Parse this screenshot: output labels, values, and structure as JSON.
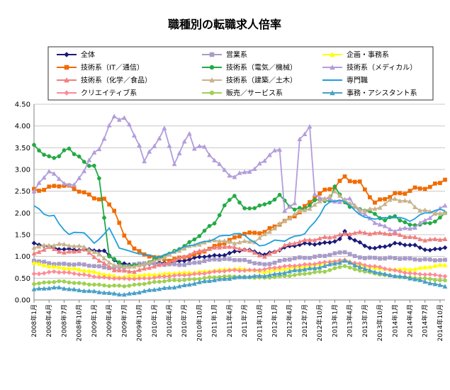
{
  "chart_data": {
    "type": "line",
    "title": "職種別の転職求人倍率",
    "ylim": [
      0,
      4.5
    ],
    "y_ticks": [
      "0.00",
      "0.50",
      "1.00",
      "1.50",
      "2.00",
      "2.50",
      "3.00",
      "3.50",
      "4.00",
      "4.50"
    ],
    "x_ticks": [
      "2008年1月",
      "2008年4月",
      "2008年7月",
      "2008年10月",
      "2009年1月",
      "2009年4月",
      "2009年7月",
      "2009年10月",
      "2010年1月",
      "2010年4月",
      "2010年7月",
      "2010年10月",
      "2011年1月",
      "2011年4月",
      "2011年7月",
      "2011年10月",
      "2012年1月",
      "2012年4月",
      "2012年7月",
      "2012年10月",
      "2013年1月",
      "2013年4月",
      "2013年7月",
      "2013年10月",
      "2014年1月",
      "2014年4月",
      "2014年7月",
      "2014年10月"
    ],
    "grid": true,
    "legend_position": "top",
    "series": [
      {
        "name": "全体",
        "color": "#1a1a7a",
        "marker": "diamond",
        "anchors": [
          [
            0,
            1.28
          ],
          [
            4,
            1.2
          ],
          [
            9,
            1.15
          ],
          [
            14,
            1.12
          ],
          [
            17,
            0.85
          ],
          [
            20,
            0.8
          ],
          [
            25,
            0.85
          ],
          [
            30,
            0.9
          ],
          [
            34,
            1.0
          ],
          [
            38,
            1.05
          ],
          [
            42,
            1.15
          ],
          [
            46,
            1.05
          ],
          [
            50,
            1.2
          ],
          [
            54,
            1.28
          ],
          [
            56,
            1.3
          ],
          [
            58,
            1.32
          ],
          [
            61,
            1.38
          ],
          [
            62,
            1.55
          ],
          [
            63,
            1.42
          ],
          [
            66,
            1.25
          ],
          [
            68,
            1.2
          ],
          [
            72,
            1.28
          ],
          [
            76,
            1.25
          ],
          [
            79,
            1.15
          ],
          [
            82,
            1.2
          ]
        ]
      },
      {
        "name": "営業系",
        "color": "#a89cc8",
        "marker": "square",
        "anchors": [
          [
            0,
            0.9
          ],
          [
            3,
            0.85
          ],
          [
            10,
            0.8
          ],
          [
            15,
            0.75
          ],
          [
            18,
            0.75
          ],
          [
            22,
            0.85
          ],
          [
            30,
            0.8
          ],
          [
            36,
            0.95
          ],
          [
            42,
            0.9
          ],
          [
            46,
            0.82
          ],
          [
            52,
            0.95
          ],
          [
            56,
            1.0
          ],
          [
            60,
            1.05
          ],
          [
            62,
            1.1
          ],
          [
            64,
            1.0
          ],
          [
            70,
            0.95
          ],
          [
            76,
            0.95
          ],
          [
            82,
            0.9
          ]
        ]
      },
      {
        "name": "企画・事務系",
        "color": "#ffff00",
        "marker": "triangle",
        "anchors": [
          [
            0,
            0.85
          ],
          [
            5,
            0.75
          ],
          [
            12,
            0.65
          ],
          [
            17,
            0.52
          ],
          [
            22,
            0.58
          ],
          [
            30,
            0.62
          ],
          [
            36,
            0.68
          ],
          [
            42,
            0.72
          ],
          [
            46,
            0.65
          ],
          [
            52,
            0.75
          ],
          [
            58,
            0.85
          ],
          [
            62,
            0.92
          ],
          [
            66,
            0.78
          ],
          [
            70,
            0.7
          ],
          [
            76,
            0.72
          ],
          [
            82,
            0.8
          ]
        ]
      },
      {
        "name": "技術系（IT／通信）",
        "color": "#f26b00",
        "marker": "square",
        "anchors": [
          [
            0,
            2.55
          ],
          [
            5,
            2.62
          ],
          [
            9,
            2.52
          ],
          [
            14,
            2.3
          ],
          [
            16,
            2.05
          ],
          [
            18,
            1.45
          ],
          [
            20,
            1.2
          ],
          [
            22,
            1.05
          ],
          [
            27,
            0.9
          ],
          [
            32,
            1.05
          ],
          [
            38,
            1.3
          ],
          [
            42,
            1.55
          ],
          [
            46,
            1.55
          ],
          [
            50,
            1.8
          ],
          [
            53,
            2.05
          ],
          [
            56,
            2.35
          ],
          [
            60,
            2.6
          ],
          [
            62,
            2.85
          ],
          [
            65,
            2.7
          ],
          [
            68,
            2.2
          ],
          [
            72,
            2.45
          ],
          [
            76,
            2.55
          ],
          [
            79,
            2.55
          ],
          [
            82,
            2.8
          ]
        ]
      },
      {
        "name": "技術系（電気／機械）",
        "color": "#22aa44",
        "marker": "circle",
        "anchors": [
          [
            0,
            3.65
          ],
          [
            2,
            3.3
          ],
          [
            5,
            3.25
          ],
          [
            7,
            3.5
          ],
          [
            10,
            3.2
          ],
          [
            12,
            3.1
          ],
          [
            13,
            2.75
          ],
          [
            15,
            1.0
          ],
          [
            18,
            0.78
          ],
          [
            22,
            0.82
          ],
          [
            27,
            1.05
          ],
          [
            32,
            1.4
          ],
          [
            36,
            1.75
          ],
          [
            38,
            2.15
          ],
          [
            40,
            2.45
          ],
          [
            42,
            2.1
          ],
          [
            46,
            2.15
          ],
          [
            49,
            2.4
          ],
          [
            52,
            2.1
          ],
          [
            54,
            2.1
          ],
          [
            56,
            2.25
          ],
          [
            59,
            2.3
          ],
          [
            60,
            2.6
          ],
          [
            63,
            2.15
          ],
          [
            66,
            2.05
          ],
          [
            70,
            1.85
          ],
          [
            72,
            1.95
          ],
          [
            75,
            1.7
          ],
          [
            79,
            1.75
          ],
          [
            82,
            2.0
          ]
        ]
      },
      {
        "name": "技術系（メディカル）",
        "color": "#b39ddb",
        "marker": "triangle",
        "anchors": [
          [
            0,
            2.5
          ],
          [
            3,
            2.95
          ],
          [
            5,
            2.75
          ],
          [
            8,
            2.65
          ],
          [
            11,
            3.2
          ],
          [
            13,
            3.45
          ],
          [
            16,
            4.2
          ],
          [
            18,
            4.25
          ],
          [
            21,
            3.6
          ],
          [
            22,
            3.15
          ],
          [
            26,
            3.9
          ],
          [
            28,
            3.2
          ],
          [
            31,
            3.85
          ],
          [
            32,
            3.5
          ],
          [
            34,
            3.45
          ],
          [
            37,
            3.1
          ],
          [
            40,
            2.85
          ],
          [
            42,
            2.95
          ],
          [
            44,
            2.95
          ],
          [
            47,
            3.35
          ],
          [
            49,
            3.5
          ],
          [
            50,
            2.1
          ],
          [
            52,
            2.2
          ],
          [
            53,
            3.7
          ],
          [
            55,
            3.9
          ],
          [
            56,
            2.4
          ],
          [
            60,
            2.3
          ],
          [
            63,
            2.3
          ],
          [
            65,
            2.0
          ],
          [
            68,
            1.8
          ],
          [
            72,
            1.6
          ],
          [
            76,
            1.65
          ],
          [
            82,
            2.2
          ]
        ]
      },
      {
        "name": "技術系（化学／食品）",
        "color": "#f08080",
        "marker": "triangle",
        "anchors": [
          [
            0,
            1.05
          ],
          [
            3,
            1.2
          ],
          [
            6,
            1.1
          ],
          [
            10,
            1.15
          ],
          [
            13,
            0.9
          ],
          [
            16,
            0.7
          ],
          [
            20,
            0.65
          ],
          [
            25,
            0.8
          ],
          [
            30,
            1.0
          ],
          [
            34,
            1.15
          ],
          [
            38,
            1.25
          ],
          [
            42,
            1.15
          ],
          [
            46,
            1.0
          ],
          [
            50,
            1.25
          ],
          [
            54,
            1.35
          ],
          [
            58,
            1.45
          ],
          [
            62,
            1.5
          ],
          [
            66,
            1.55
          ],
          [
            70,
            1.55
          ],
          [
            74,
            1.45
          ],
          [
            78,
            1.4
          ],
          [
            82,
            1.4
          ]
        ]
      },
      {
        "name": "技術系（建築／土木）",
        "color": "#c8b48c",
        "marker": "triangle",
        "anchors": [
          [
            0,
            1.2
          ],
          [
            5,
            1.3
          ],
          [
            10,
            1.2
          ],
          [
            13,
            1.05
          ],
          [
            16,
            0.8
          ],
          [
            20,
            0.75
          ],
          [
            24,
            0.9
          ],
          [
            28,
            1.1
          ],
          [
            32,
            1.25
          ],
          [
            36,
            1.4
          ],
          [
            40,
            1.3
          ],
          [
            44,
            1.35
          ],
          [
            47,
            1.6
          ],
          [
            50,
            1.8
          ],
          [
            52,
            1.95
          ],
          [
            56,
            2.2
          ],
          [
            58,
            2.35
          ],
          [
            60,
            2.45
          ],
          [
            63,
            2.2
          ],
          [
            65,
            2.1
          ],
          [
            68,
            2.1
          ],
          [
            72,
            2.3
          ],
          [
            75,
            2.25
          ],
          [
            77,
            2.1
          ],
          [
            80,
            2.0
          ],
          [
            82,
            1.95
          ]
        ]
      },
      {
        "name": "専門職",
        "color": "#1ea0dc",
        "marker": "none",
        "anchors": [
          [
            0,
            2.15
          ],
          [
            2,
            2.0
          ],
          [
            4,
            1.95
          ],
          [
            5,
            1.75
          ],
          [
            7,
            1.5
          ],
          [
            10,
            1.55
          ],
          [
            12,
            1.3
          ],
          [
            14,
            1.55
          ],
          [
            15,
            1.65
          ],
          [
            17,
            1.2
          ],
          [
            19,
            1.1
          ],
          [
            22,
            1.05
          ],
          [
            25,
            1.0
          ],
          [
            28,
            1.1
          ],
          [
            31,
            1.25
          ],
          [
            34,
            1.35
          ],
          [
            37,
            1.45
          ],
          [
            40,
            1.5
          ],
          [
            42,
            1.5
          ],
          [
            45,
            1.25
          ],
          [
            48,
            1.35
          ],
          [
            50,
            1.35
          ],
          [
            52,
            1.45
          ],
          [
            54,
            1.55
          ],
          [
            56,
            1.8
          ],
          [
            58,
            2.15
          ],
          [
            61,
            2.3
          ],
          [
            64,
            2.1
          ],
          [
            66,
            1.9
          ],
          [
            70,
            1.85
          ],
          [
            72,
            1.9
          ],
          [
            75,
            1.85
          ],
          [
            78,
            2.0
          ],
          [
            82,
            2.05
          ]
        ]
      },
      {
        "name": "クリエイティブ系",
        "color": "#ff8a9a",
        "marker": "diamond",
        "anchors": [
          [
            0,
            0.6
          ],
          [
            4,
            0.65
          ],
          [
            10,
            0.58
          ],
          [
            15,
            0.5
          ],
          [
            18,
            0.48
          ],
          [
            22,
            0.5
          ],
          [
            28,
            0.55
          ],
          [
            34,
            0.62
          ],
          [
            40,
            0.68
          ],
          [
            46,
            0.7
          ],
          [
            52,
            0.8
          ],
          [
            58,
            0.85
          ],
          [
            62,
            0.92
          ],
          [
            66,
            0.8
          ],
          [
            70,
            0.72
          ],
          [
            76,
            0.6
          ],
          [
            82,
            0.55
          ]
        ]
      },
      {
        "name": "販売／サービス系",
        "color": "#a0d050",
        "marker": "circle",
        "anchors": [
          [
            0,
            0.38
          ],
          [
            5,
            0.42
          ],
          [
            10,
            0.38
          ],
          [
            15,
            0.32
          ],
          [
            18,
            0.32
          ],
          [
            22,
            0.38
          ],
          [
            28,
            0.45
          ],
          [
            34,
            0.5
          ],
          [
            40,
            0.55
          ],
          [
            46,
            0.5
          ],
          [
            52,
            0.58
          ],
          [
            58,
            0.65
          ],
          [
            62,
            0.8
          ],
          [
            64,
            0.7
          ],
          [
            68,
            0.6
          ],
          [
            72,
            0.55
          ],
          [
            76,
            0.5
          ],
          [
            82,
            0.45
          ]
        ]
      },
      {
        "name": "事務・アシスタント系",
        "color": "#4aa0c8",
        "marker": "triangle",
        "anchors": [
          [
            0,
            0.25
          ],
          [
            5,
            0.28
          ],
          [
            10,
            0.22
          ],
          [
            15,
            0.15
          ],
          [
            18,
            0.13
          ],
          [
            22,
            0.2
          ],
          [
            28,
            0.3
          ],
          [
            34,
            0.42
          ],
          [
            40,
            0.52
          ],
          [
            46,
            0.55
          ],
          [
            52,
            0.68
          ],
          [
            56,
            0.72
          ],
          [
            60,
            0.85
          ],
          [
            62,
            0.9
          ],
          [
            66,
            0.7
          ],
          [
            70,
            0.6
          ],
          [
            74,
            0.52
          ],
          [
            78,
            0.42
          ],
          [
            82,
            0.32
          ]
        ]
      }
    ]
  }
}
